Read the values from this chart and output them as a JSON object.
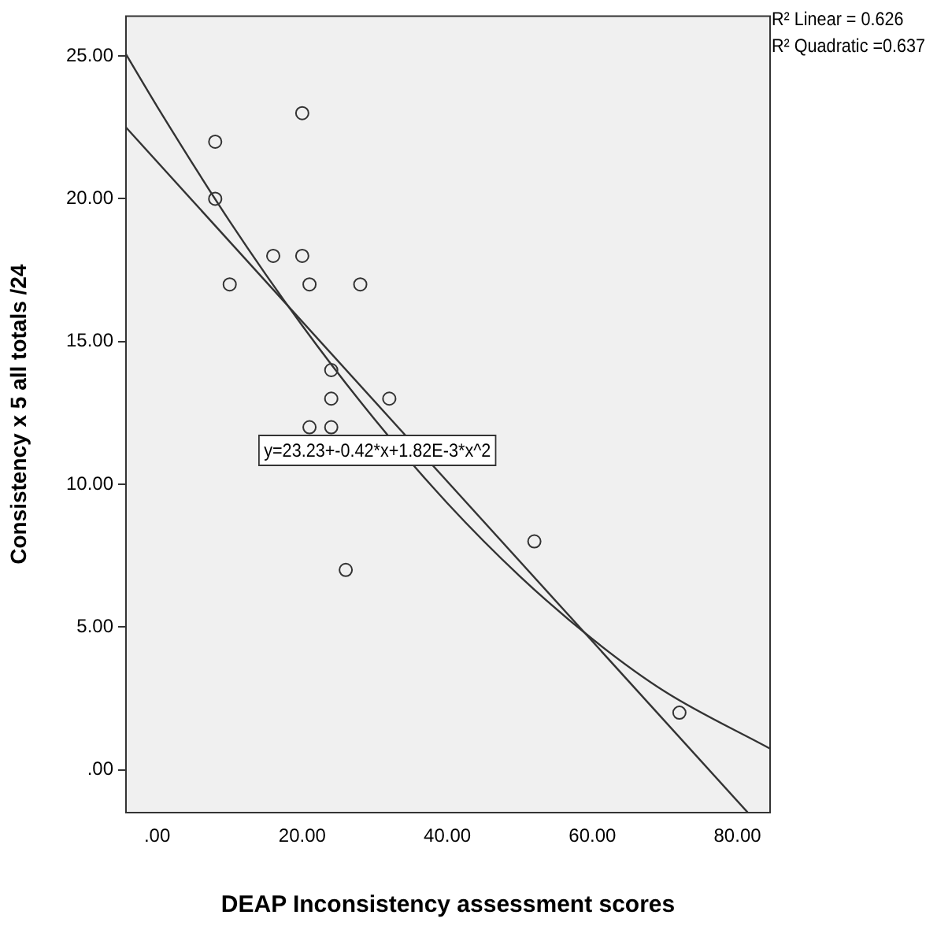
{
  "chart_data": {
    "type": "scatter",
    "xlabel": "DEAP Inconsistency assessment scores",
    "ylabel": "Consistency x 5 all totals /24",
    "xlim": [
      -4.3,
      84.5
    ],
    "ylim": [
      -1.5,
      26.4
    ],
    "xticks": [
      {
        "value": 0,
        "label": ".00"
      },
      {
        "value": 20,
        "label": "20.00"
      },
      {
        "value": 40,
        "label": "40.00"
      },
      {
        "value": 60,
        "label": "60.00"
      },
      {
        "value": 80,
        "label": "80.00"
      }
    ],
    "yticks": [
      {
        "value": 0,
        "label": ".00"
      },
      {
        "value": 5,
        "label": "5.00"
      },
      {
        "value": 10,
        "label": "10.00"
      },
      {
        "value": 15,
        "label": "15.00"
      },
      {
        "value": 20,
        "label": "20.00"
      },
      {
        "value": 25,
        "label": "25.00"
      }
    ],
    "grid": false,
    "legend": false,
    "series": [
      {
        "type": "scatter",
        "marker": "circle",
        "color": "#333333",
        "x": [
          8,
          8,
          10,
          16,
          20,
          20,
          21,
          28,
          24,
          24,
          21,
          24,
          32,
          26,
          52,
          72
        ],
        "values": [
          22,
          20,
          17,
          18,
          23,
          18,
          17,
          17,
          14,
          13,
          12,
          12,
          13,
          7,
          8,
          2
        ]
      },
      {
        "type": "line",
        "color": "#333333",
        "x": [
          -4.3,
          81.4
        ],
        "values": [
          22.5,
          -1.49
        ]
      },
      {
        "type": "line",
        "color": "#333333",
        "x": [
          -4.3,
          0,
          10,
          20,
          30,
          40,
          50,
          60,
          70,
          84.5
        ],
        "values": [
          25.06,
          23.23,
          19.21,
          15.56,
          12.27,
          9.34,
          6.78,
          4.58,
          2.74,
          0.74
        ]
      }
    ],
    "annotations": [
      "R² Linear = 0.626",
      "R² Quadratic =0.637",
      "y=23.23+-0.42*x+1.82E-3*x^2"
    ]
  }
}
